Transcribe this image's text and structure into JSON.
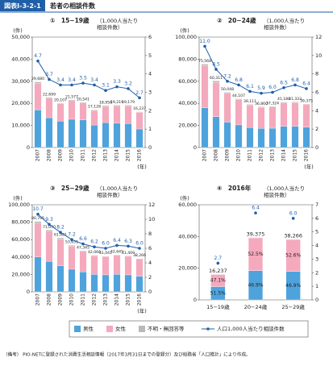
{
  "header": {
    "figure_no": "図表Ⅰ-3-2-1",
    "title": "若者の相談件数"
  },
  "legend": [
    {
      "name": "男性",
      "color": "#4fa3dc"
    },
    {
      "name": "女性",
      "color": "#f5a9bd"
    },
    {
      "name": "不明・無回答等",
      "color": "#b9b9b9"
    },
    {
      "name": "人口1,000人当たり相談件数",
      "color": "#1f5fa8"
    }
  ],
  "footnote": "（備考） PIO-NETに登録された消費生活相談情報（2017年3月31日までの登録分）及び総務省「人口推計」により作成。",
  "chart_data": [
    {
      "type": "combo",
      "title": "①　15−19歳",
      "y_unit": "(件)",
      "y2_label": [
        "（1,000人当たり",
        "相談件数）"
      ],
      "x_unit": "(年)",
      "categories": [
        "2007",
        "2008",
        "2009",
        "2010",
        "2011",
        "2012",
        "2013",
        "2014",
        "2015",
        "2016"
      ],
      "ylim": [
        0,
        50000
      ],
      "yticks": [
        0,
        {
          "value": 10000,
          "label": "10,000"
        },
        {
          "value": 20000,
          "label": "20,000"
        },
        {
          "value": 30000,
          "label": "30,000"
        },
        {
          "value": 40000,
          "label": "40,000"
        },
        {
          "value": 50000,
          "label": "50,000"
        }
      ],
      "y2lim": [
        0,
        6
      ],
      "y2ticks": [
        0,
        1,
        2,
        3,
        4,
        5,
        6
      ],
      "total_labels": [
        "29,680",
        "22,699",
        "20,107",
        "21,577",
        "20,541",
        "17,128",
        "18,958",
        "19,219",
        "19,179",
        "16,237"
      ],
      "series": [
        {
          "color": "#4fa3dc",
          "values": [
            17000,
            13500,
            12000,
            12800,
            12500,
            10200,
            11300,
            11000,
            10800,
            8400
          ]
        },
        {
          "color": "#f5a9bd",
          "values": [
            12000,
            8800,
            7800,
            8400,
            7700,
            6600,
            7300,
            7800,
            8000,
            7600
          ]
        },
        {
          "color": "#b9b9b9",
          "values": [
            680,
            400,
            300,
            400,
            300,
            300,
            400,
            400,
            400,
            200
          ]
        },
        {
          "color": "#1f5fa8",
          "axis": "y2",
          "values": [
            4.7,
            3.7,
            3.4,
            3.4,
            3.5,
            3.4,
            3.1,
            3.3,
            3.2,
            2.7
          ]
        }
      ]
    },
    {
      "type": "combo",
      "title": "②　20−24歳",
      "y_unit": "(件)",
      "y2_label": [
        "（1,000人当たり",
        "相談件数）"
      ],
      "x_unit": "(年)",
      "categories": [
        "2007",
        "2008",
        "2009",
        "2010",
        "2011",
        "2012",
        "2013",
        "2014",
        "2015",
        "2016"
      ],
      "ylim": [
        0,
        100000
      ],
      "yticks": [
        0,
        {
          "value": 20000,
          "label": "20,000"
        },
        {
          "value": 40000,
          "label": "40,000"
        },
        {
          "value": 60000,
          "label": "60,000"
        },
        {
          "value": 80000,
          "label": "80,000"
        },
        {
          "value": 100000,
          "label": "100,000"
        }
      ],
      "y2lim": [
        0,
        12
      ],
      "y2ticks": [
        0,
        2,
        4,
        6,
        8,
        10,
        12
      ],
      "total_labels": [
        "75,568",
        "60,311",
        "50,048",
        "44,107",
        "39,111",
        "36,860",
        "37,324",
        "41,180",
        "41,333",
        "39,375"
      ],
      "series": [
        {
          "color": "#4fa3dc",
          "values": [
            36000,
            28000,
            23000,
            20500,
            18000,
            17300,
            17500,
            19200,
            19300,
            18500
          ]
        },
        {
          "color": "#f5a9bd",
          "values": [
            38000,
            31000,
            26000,
            22800,
            20400,
            19000,
            19200,
            21300,
            21400,
            20700
          ]
        },
        {
          "color": "#b9b9b9",
          "values": [
            1500,
            1300,
            1000,
            800,
            700,
            600,
            600,
            700,
            600,
            200
          ]
        },
        {
          "color": "#1f5fa8",
          "axis": "y2",
          "values": [
            11.0,
            8.5,
            7.2,
            6.8,
            6.1,
            5.9,
            6.0,
            6.5,
            6.8,
            6.4
          ],
          "value_labels": [
            "11.0",
            "8.5",
            "7.2",
            "6.8",
            "6.1",
            "5.9",
            "6.0",
            "6.5",
            "6.8",
            "6.4"
          ]
        }
      ]
    },
    {
      "type": "combo",
      "title": "③　25−29歳",
      "y_unit": "(件)",
      "y2_label": [
        "（1,000人当たり",
        "相談件数）"
      ],
      "x_unit": "(年)",
      "categories": [
        "2007",
        "2008",
        "2009",
        "2010",
        "2011",
        "2012",
        "2013",
        "2014",
        "2015",
        "2016"
      ],
      "ylim": [
        0,
        100000
      ],
      "yticks": [
        0,
        {
          "value": 20000,
          "label": "20,000"
        },
        {
          "value": 40000,
          "label": "40,000"
        },
        {
          "value": 60000,
          "label": "60,000"
        },
        {
          "value": 80000,
          "label": "80,000"
        },
        {
          "value": 100000,
          "label": "100,000"
        }
      ],
      "y2lim": [
        0,
        12
      ],
      "y2ticks": [
        0,
        2,
        4,
        6,
        8,
        10,
        12
      ],
      "total_labels": [
        "80,795",
        "71,070",
        "61,981",
        "53,651",
        "47,345",
        "42,066",
        "41,041",
        "42,645",
        "41,409",
        "38,266"
      ],
      "series": [
        {
          "color": "#4fa3dc",
          "values": [
            40000,
            35000,
            30000,
            26000,
            23000,
            20000,
            19500,
            20200,
            19500,
            17900
          ]
        },
        {
          "color": "#f5a9bd",
          "values": [
            39000,
            34500,
            30700,
            26600,
            23500,
            21400,
            20900,
            21800,
            21300,
            20100
          ]
        },
        {
          "color": "#b9b9b9",
          "values": [
            1800,
            1500,
            1300,
            1000,
            800,
            700,
            600,
            600,
            600,
            300
          ]
        },
        {
          "color": "#1f5fa8",
          "axis": "y2",
          "values": [
            10.7,
            9.3,
            8.2,
            7.2,
            6.6,
            6.2,
            6.0,
            6.4,
            6.3,
            6.0
          ],
          "value_labels": [
            "10.7",
            "9.3",
            "8.2",
            "7.2",
            "6.6",
            "6.2",
            "6.0",
            "6.4",
            "6.3",
            "6.0"
          ]
        }
      ]
    },
    {
      "type": "combo",
      "title": "④　2016年",
      "y_unit": "(件)",
      "y2_label": [
        "（1,000人当たり",
        "相談件数）"
      ],
      "categories": [
        "15−19歳",
        "20−24歳",
        "25−29歳"
      ],
      "ylim": [
        0,
        60000
      ],
      "yticks": [
        0,
        {
          "value": 20000,
          "label": "20,000"
        },
        {
          "value": 40000,
          "label": "40,000"
        },
        {
          "value": 60000,
          "label": "60,000"
        }
      ],
      "y2lim": [
        0,
        7
      ],
      "y2ticks": [
        0,
        1,
        2,
        3,
        4,
        5,
        6,
        7
      ],
      "total_labels": [
        "16,237",
        "39,375",
        "38,266"
      ],
      "series": [
        {
          "color": "#4fa3dc",
          "values": [
            8362,
            18467,
            17947
          ],
          "pct_labels": [
            "51.5%",
            "46.9%",
            "46.9%"
          ]
        },
        {
          "color": "#f5a9bd",
          "values": [
            7648,
            20672,
            20128
          ],
          "pct_labels": [
            "47.1%",
            "52.5%",
            "52.6%"
          ]
        },
        {
          "color": "#b9b9b9",
          "values": [
            227,
            236,
            191
          ]
        },
        {
          "color": "#1f5fa8",
          "axis": "y2",
          "values": [
            2.7,
            6.4,
            6.0
          ],
          "value_labels": [
            "2.7",
            "6.4",
            "6.0"
          ]
        }
      ]
    }
  ]
}
